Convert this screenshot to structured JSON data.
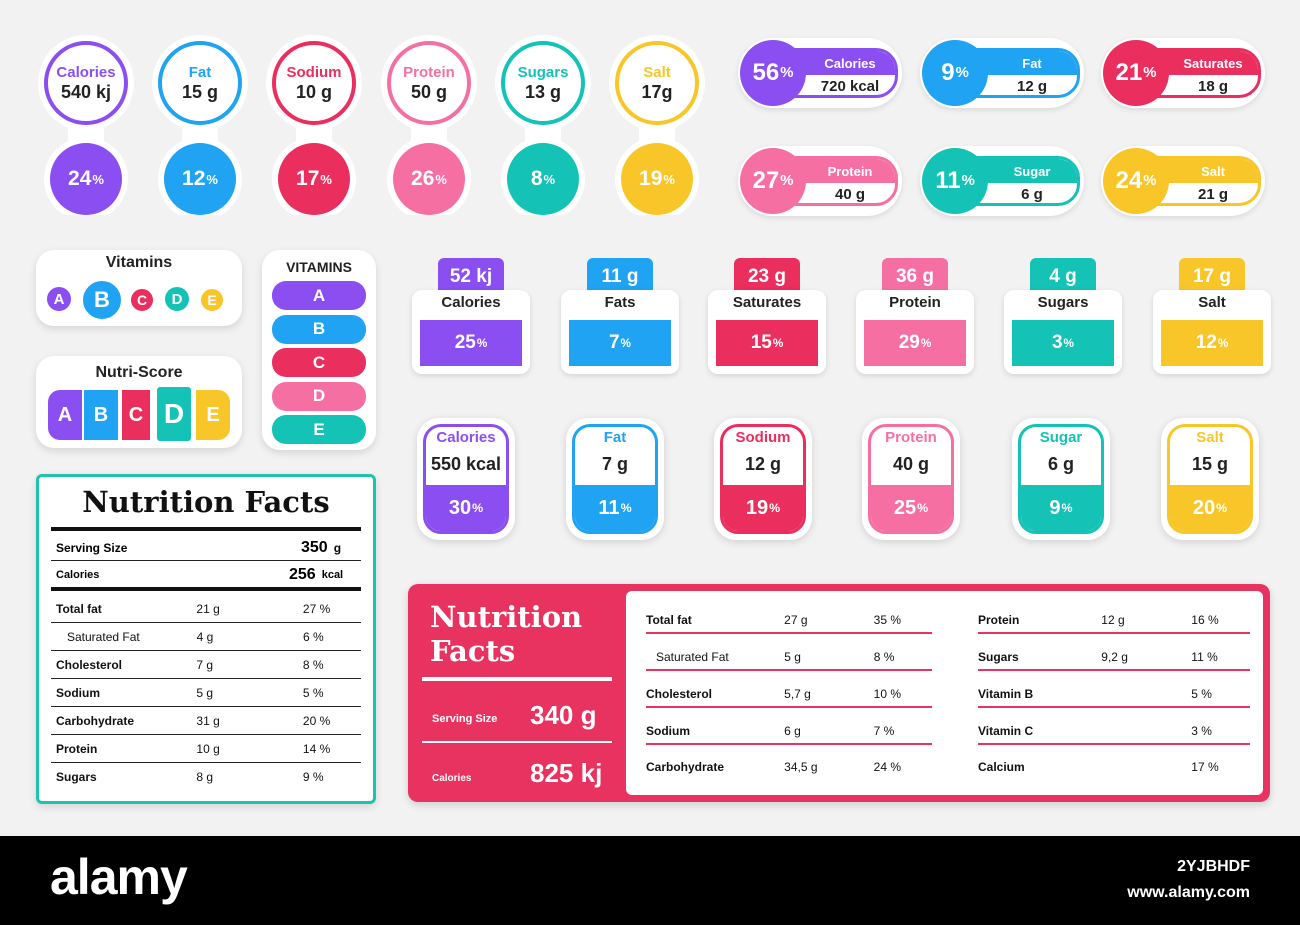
{
  "colors": {
    "purple": "#8b4ef0",
    "blue": "#1fa3f2",
    "red": "#ea2e5e",
    "pink": "#f56fa3",
    "teal": "#14c2b6",
    "yellow": "#f8c628"
  },
  "pins": [
    {
      "label": "Calories",
      "value": "540 kj",
      "pct": "24",
      "color": "#8b4ef0"
    },
    {
      "label": "Fat",
      "value": "15 g",
      "pct": "12",
      "color": "#1fa3f2"
    },
    {
      "label": "Sodium",
      "value": "10 g",
      "pct": "17",
      "color": "#ea2e5e"
    },
    {
      "label": "Protein",
      "value": "50 g",
      "pct": "26",
      "color": "#f56fa3"
    },
    {
      "label": "Sugars",
      "value": "13 g",
      "pct": "8",
      "color": "#14c2b6"
    },
    {
      "label": "Salt",
      "value": "17g",
      "pct": "19",
      "color": "#f8c628"
    }
  ],
  "pills": [
    {
      "label": "Calories",
      "value": "720 kcal",
      "pct": "56",
      "color": "#8b4ef0"
    },
    {
      "label": "Fat",
      "value": "12 g",
      "pct": "9",
      "color": "#1fa3f2"
    },
    {
      "label": "Saturates",
      "value": "18 g",
      "pct": "21",
      "color": "#ea2e5e"
    },
    {
      "label": "Protein",
      "value": "40 g",
      "pct": "27",
      "color": "#f56fa3"
    },
    {
      "label": "Sugar",
      "value": "6 g",
      "pct": "11",
      "color": "#14c2b6"
    },
    {
      "label": "Salt",
      "value": "21 g",
      "pct": "24",
      "color": "#f8c628"
    }
  ],
  "tabs": [
    {
      "label": "Calories",
      "value": "52 kj",
      "pct": "25",
      "color": "#8b4ef0"
    },
    {
      "label": "Fats",
      "value": "11 g",
      "pct": "7",
      "color": "#1fa3f2"
    },
    {
      "label": "Saturates",
      "value": "23 g",
      "pct": "15",
      "color": "#ea2e5e"
    },
    {
      "label": "Protein",
      "value": "36 g",
      "pct": "29",
      "color": "#f56fa3"
    },
    {
      "label": "Sugars",
      "value": "4 g",
      "pct": "3",
      "color": "#14c2b6"
    },
    {
      "label": "Salt",
      "value": "17 g",
      "pct": "12",
      "color": "#f8c628"
    }
  ],
  "capsules": [
    {
      "label": "Calories",
      "value": "550 kcal",
      "pct": "30",
      "color": "#8b4ef0"
    },
    {
      "label": "Fat",
      "value": "7 g",
      "pct": "11",
      "color": "#1fa3f2"
    },
    {
      "label": "Sodium",
      "value": "12 g",
      "pct": "19",
      "color": "#ea2e5e"
    },
    {
      "label": "Protein",
      "value": "40 g",
      "pct": "25",
      "color": "#f56fa3"
    },
    {
      "label": "Sugar",
      "value": "6 g",
      "pct": "9",
      "color": "#14c2b6"
    },
    {
      "label": "Salt",
      "value": "15 g",
      "pct": "20",
      "color": "#f8c628"
    }
  ],
  "pct_sign": "%",
  "vitamins_round": {
    "title": "Vitamins",
    "letters": [
      "A",
      "B",
      "C",
      "D",
      "E"
    ]
  },
  "vitamins_list": {
    "title": "VITAMINS",
    "letters": [
      "A",
      "B",
      "C",
      "D",
      "E"
    ]
  },
  "nutri_score": {
    "title": "Nutri-Score",
    "letters": [
      "A",
      "B",
      "C",
      "D",
      "E"
    ],
    "selected": "D"
  },
  "facts_left": {
    "title": "Nutrition Facts",
    "serving_label": "Serving Size",
    "serving_value": "350",
    "serving_unit": "g",
    "calories_label": "Calories",
    "calories_value": "256",
    "calories_unit": "kcal",
    "rows": [
      {
        "name": "Total fat",
        "amount": "21 g",
        "pct": "27 %"
      },
      {
        "name": "Saturated Fat",
        "amount": "4 g",
        "pct": "6 %",
        "indent": true
      },
      {
        "name": "Cholesterol",
        "amount": "7 g",
        "pct": "8 %"
      },
      {
        "name": "Sodium",
        "amount": "5 g",
        "pct": "5 %"
      },
      {
        "name": "Carbohydrate",
        "amount": "31 g",
        "pct": "20 %"
      },
      {
        "name": "Protein",
        "amount": "10 g",
        "pct": "14 %"
      },
      {
        "name": "Sugars",
        "amount": "8 g",
        "pct": "9 %"
      }
    ]
  },
  "facts_right": {
    "title_line1": "Nutrition",
    "title_line2": "Facts",
    "serving_label": "Serving Size",
    "serving_value": "340 g",
    "calories_label": "Calories",
    "calories_value": "825 kj",
    "col1": [
      {
        "name": "Total fat",
        "amount": "27 g",
        "pct": "35 %"
      },
      {
        "name": "Saturated Fat",
        "amount": "5 g",
        "pct": "8 %",
        "indent": true
      },
      {
        "name": "Cholesterol",
        "amount": "5,7 g",
        "pct": "10 %"
      },
      {
        "name": "Sodium",
        "amount": "6 g",
        "pct": "7 %"
      },
      {
        "name": "Carbohydrate",
        "amount": "34,5 g",
        "pct": "24 %"
      }
    ],
    "col2": [
      {
        "name": "Protein",
        "amount": "12 g",
        "pct": "16 %"
      },
      {
        "name": "Sugars",
        "amount": "9,2 g",
        "pct": "11 %"
      },
      {
        "name": "Vitamin B",
        "amount": "",
        "pct": "5 %"
      },
      {
        "name": "Vitamin C",
        "amount": "",
        "pct": "3 %"
      },
      {
        "name": "Calcium",
        "amount": "",
        "pct": "17 %"
      }
    ]
  },
  "footer": {
    "brand": "alamy",
    "image_id": "2YJBHDF",
    "site": "www.alamy.com"
  }
}
